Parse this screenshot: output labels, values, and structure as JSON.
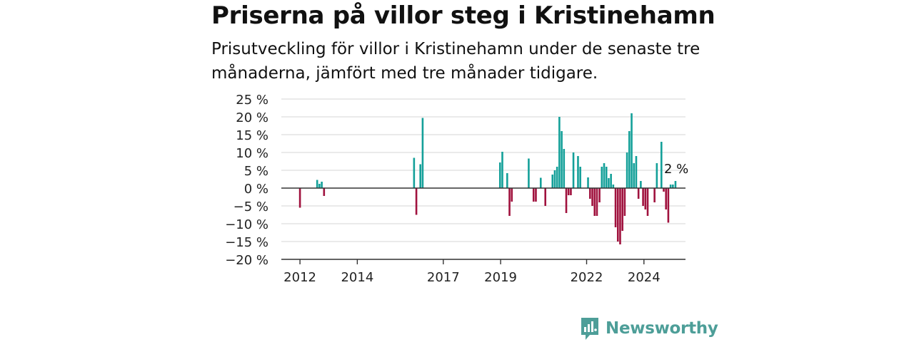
{
  "title": "Priserna på villor steg i Kristinehamn",
  "subtitle": "Prisutveckling för villor i Kristinehamn under de senaste tre månaderna, jämfört med tre månader tidigare.",
  "brand": {
    "name": "Newsworthy",
    "icon": "newsworthy-chart-icon",
    "color": "#4d9e98"
  },
  "colors": {
    "positive": "#14a099",
    "negative": "#a0123e",
    "grid": "#dddddd",
    "axis": "#333333"
  },
  "chart_data": {
    "type": "bar",
    "ylim": [
      -20,
      25
    ],
    "ylabel": "",
    "xlabel": "",
    "y_ticks": [
      25,
      20,
      15,
      10,
      5,
      0,
      -5,
      -10,
      -15,
      -20
    ],
    "y_tick_labels": [
      "25 %",
      "20 %",
      "15 %",
      "10 %",
      "5 %",
      "0 %",
      "−5 %",
      "−10 %",
      "−15 %",
      "−20 %"
    ],
    "x_ticks": [
      2012,
      2014,
      2017,
      2019,
      2022,
      2024
    ],
    "x_tick_labels": [
      "2012",
      "2014",
      "2017",
      "2019",
      "2022",
      "2024"
    ],
    "x_range": [
      2011.35,
      2025.45
    ],
    "grid": true,
    "legend": "none",
    "annotation": {
      "x": 2025.1,
      "value": 2,
      "label": "2 %"
    },
    "bars": [
      {
        "x": 2012.0,
        "y": -5.5
      },
      {
        "x": 2012.6,
        "y": 2.3
      },
      {
        "x": 2012.68,
        "y": 1.2
      },
      {
        "x": 2012.76,
        "y": 1.8
      },
      {
        "x": 2012.84,
        "y": -2.2
      },
      {
        "x": 2015.98,
        "y": 8.5
      },
      {
        "x": 2016.06,
        "y": -7.5
      },
      {
        "x": 2016.2,
        "y": 6.7
      },
      {
        "x": 2016.28,
        "y": 19.7
      },
      {
        "x": 2018.98,
        "y": 7.2
      },
      {
        "x": 2019.06,
        "y": 10.2
      },
      {
        "x": 2019.23,
        "y": 4.2
      },
      {
        "x": 2019.31,
        "y": -7.8
      },
      {
        "x": 2019.39,
        "y": -3.8
      },
      {
        "x": 2019.98,
        "y": 8.3
      },
      {
        "x": 2020.15,
        "y": -3.8
      },
      {
        "x": 2020.23,
        "y": -3.8
      },
      {
        "x": 2020.4,
        "y": 2.9
      },
      {
        "x": 2020.56,
        "y": -5.0
      },
      {
        "x": 2020.81,
        "y": 3.8
      },
      {
        "x": 2020.89,
        "y": 5.0
      },
      {
        "x": 2020.97,
        "y": 6.0
      },
      {
        "x": 2021.05,
        "y": 20.0
      },
      {
        "x": 2021.13,
        "y": 16.0
      },
      {
        "x": 2021.21,
        "y": 11.0
      },
      {
        "x": 2021.29,
        "y": -7.0
      },
      {
        "x": 2021.37,
        "y": -2.0
      },
      {
        "x": 2021.45,
        "y": -2.0
      },
      {
        "x": 2021.54,
        "y": 10.0
      },
      {
        "x": 2021.7,
        "y": 9.0
      },
      {
        "x": 2021.78,
        "y": 6.0
      },
      {
        "x": 2022.05,
        "y": 3.0
      },
      {
        "x": 2022.12,
        "y": -3.0
      },
      {
        "x": 2022.2,
        "y": -5.0
      },
      {
        "x": 2022.28,
        "y": -7.8
      },
      {
        "x": 2022.36,
        "y": -7.8
      },
      {
        "x": 2022.45,
        "y": -4.0
      },
      {
        "x": 2022.53,
        "y": 6.0
      },
      {
        "x": 2022.61,
        "y": 7.0
      },
      {
        "x": 2022.69,
        "y": 6.0
      },
      {
        "x": 2022.77,
        "y": 2.8
      },
      {
        "x": 2022.85,
        "y": 4.0
      },
      {
        "x": 2022.93,
        "y": 1.0
      },
      {
        "x": 2023.01,
        "y": -11.0
      },
      {
        "x": 2023.09,
        "y": -15.0
      },
      {
        "x": 2023.17,
        "y": -15.8
      },
      {
        "x": 2023.25,
        "y": -12.0
      },
      {
        "x": 2023.33,
        "y": -7.8
      },
      {
        "x": 2023.41,
        "y": 10.0
      },
      {
        "x": 2023.49,
        "y": 16.0
      },
      {
        "x": 2023.57,
        "y": 21.0
      },
      {
        "x": 2023.65,
        "y": 7.0
      },
      {
        "x": 2023.73,
        "y": 9.0
      },
      {
        "x": 2023.81,
        "y": -3.0
      },
      {
        "x": 2023.89,
        "y": 2.0
      },
      {
        "x": 2023.97,
        "y": -5.0
      },
      {
        "x": 2024.05,
        "y": -6.0
      },
      {
        "x": 2024.13,
        "y": -7.8
      },
      {
        "x": 2024.37,
        "y": -4.0
      },
      {
        "x": 2024.45,
        "y": 7.0
      },
      {
        "x": 2024.61,
        "y": 13.0
      },
      {
        "x": 2024.69,
        "y": -1.0
      },
      {
        "x": 2024.77,
        "y": -6.0
      },
      {
        "x": 2024.85,
        "y": -9.7
      },
      {
        "x": 2024.93,
        "y": 1.0
      },
      {
        "x": 2025.01,
        "y": 1.0
      },
      {
        "x": 2025.1,
        "y": 2.0
      }
    ]
  }
}
